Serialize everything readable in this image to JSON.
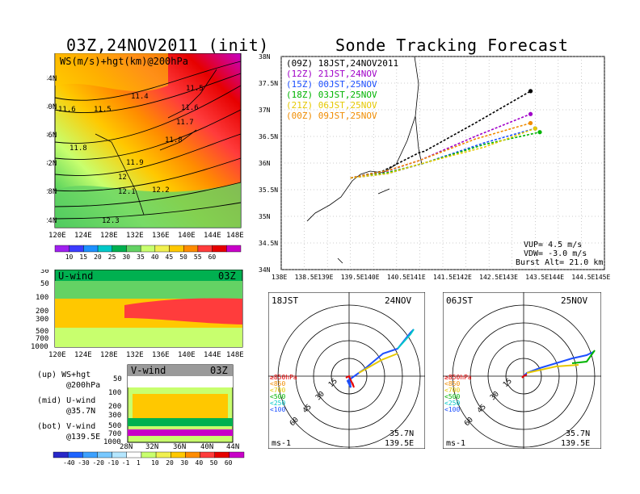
{
  "header": {
    "left_title": "03Z,24NOV2011 (init)",
    "right_title": "Sonde Tracking Forecast"
  },
  "map_panel": {
    "label": "WS(m/s)+hgt(km)@200hPa",
    "lat_labels": [
      "44N",
      "40N",
      "36N",
      "32N",
      "28N",
      "24N"
    ],
    "lon_labels": [
      "120E",
      "124E",
      "128E",
      "132E",
      "136E",
      "140E",
      "144E",
      "148E"
    ],
    "contour_labels": [
      "11.5",
      "11.4",
      "11.6",
      "11.5",
      "11.6",
      "11.7",
      "11.8",
      "11.8",
      "11.9",
      "12",
      "12.1",
      "12.2",
      "12.3"
    ],
    "colorbar_ticks": [
      "10",
      "15",
      "20",
      "25",
      "30",
      "35",
      "40",
      "45",
      "50",
      "55",
      "60"
    ],
    "colorbar_colors": [
      "#a020f0",
      "#3c3cff",
      "#1e90ff",
      "#00c8c8",
      "#00b050",
      "#64d264",
      "#c8ff6e",
      "#f0f050",
      "#ffc800",
      "#ff8c00",
      "#ff3c3c",
      "#e60000",
      "#c800c8"
    ]
  },
  "u_wind": {
    "label": "U-wind",
    "time": "03Z",
    "y_labels": [
      "30",
      "50",
      "100",
      "200",
      "300",
      "500",
      "700",
      "1000"
    ],
    "x_labels": [
      "120E",
      "124E",
      "128E",
      "132E",
      "136E",
      "140E",
      "144E",
      "148E"
    ]
  },
  "v_wind": {
    "label": "V-wind",
    "time": "03Z",
    "y_labels": [
      "50",
      "100",
      "200",
      "300",
      "500",
      "700",
      "1000"
    ],
    "x_labels": [
      "28N",
      "32N",
      "36N",
      "40N",
      "44N"
    ],
    "colorbar_ticks": [
      "-40",
      "-30",
      "-20",
      "-10",
      "-1",
      "1",
      "10",
      "20",
      "30",
      "40",
      "50",
      "60"
    ],
    "colorbar_colors": [
      "#2828c8",
      "#1e64ff",
      "#3ca0ff",
      "#78c8ff",
      "#b4e6ff",
      "#ffffff",
      "#c8ff6e",
      "#f0f050",
      "#ffc800",
      "#ff8c00",
      "#ff3c3c",
      "#e60000",
      "#c800c8"
    ]
  },
  "legend_text": [
    {
      "line1": "(up) WS+hgt",
      "line2": "@200hPa"
    },
    {
      "line1": "(mid) U-wind",
      "line2": "@35.7N"
    },
    {
      "line1": "(bot) V-wind",
      "line2": "@139.5E"
    }
  ],
  "chart_data": {
    "type": "line",
    "title": "Sonde Tracking Forecast",
    "xlabel": "",
    "ylabel": "",
    "xlim": [
      138,
      145
    ],
    "ylim": [
      34,
      38
    ],
    "x_ticks": [
      "138E",
      "138.5E",
      "139E",
      "139.5E",
      "140E",
      "140.5E",
      "141E",
      "141.5E",
      "142E",
      "142.5E",
      "143E",
      "143.5E",
      "144E",
      "144.5E",
      "145E"
    ],
    "y_ticks": [
      "34N",
      "34.5N",
      "35N",
      "35.5N",
      "36N",
      "36.5N",
      "37N",
      "37.5N",
      "38N"
    ],
    "grid": true,
    "legend_position": "top-left",
    "series": [
      {
        "name": "(09Z) 18JST,24NOV2011",
        "color": "#000000",
        "points": [
          [
            139.5,
            35.72
          ],
          [
            140.2,
            35.85
          ],
          [
            141.0,
            36.2
          ],
          [
            141.1,
            36.22
          ],
          [
            142.2,
            36.75
          ],
          [
            143.4,
            37.35
          ]
        ]
      },
      {
        "name": "(12Z) 21JST,24NOV",
        "color": "#a000c8",
        "points": [
          [
            139.5,
            35.72
          ],
          [
            140.3,
            35.85
          ],
          [
            141.0,
            36.05
          ],
          [
            142.2,
            36.5
          ],
          [
            143.4,
            36.92
          ]
        ]
      },
      {
        "name": "(15Z) 00JST,25NOV",
        "color": "#1e50ff",
        "points": [
          [
            139.5,
            35.72
          ],
          [
            140.3,
            35.8
          ],
          [
            141.1,
            36.0
          ],
          [
            142.4,
            36.38
          ],
          [
            143.5,
            36.65
          ]
        ]
      },
      {
        "name": "(18Z) 03JST,25NOV",
        "color": "#00b400",
        "points": [
          [
            139.5,
            35.72
          ],
          [
            140.3,
            35.82
          ],
          [
            141.1,
            36.0
          ],
          [
            142.4,
            36.35
          ],
          [
            143.6,
            36.58
          ]
        ]
      },
      {
        "name": "(21Z) 06JST,25NOV",
        "color": "#e6c800",
        "points": [
          [
            139.5,
            35.72
          ],
          [
            140.3,
            35.8
          ],
          [
            141.0,
            35.98
          ],
          [
            142.4,
            36.3
          ],
          [
            143.5,
            36.65
          ]
        ]
      },
      {
        "name": "(00Z) 09JST,25NOV",
        "color": "#f08c00",
        "points": [
          [
            139.5,
            35.72
          ],
          [
            140.3,
            35.86
          ],
          [
            141.0,
            36.05
          ],
          [
            142.2,
            36.45
          ],
          [
            143.4,
            36.75
          ]
        ]
      }
    ],
    "info": [
      "VUP= 4.5 m/s",
      "VDW= -3.0 m/s",
      "Burst Alt= 21.0 km"
    ]
  },
  "hodographs": [
    {
      "time": "18JST",
      "date": "24NOV",
      "ring_labels": [
        "15",
        "30",
        "45",
        "60"
      ],
      "unit": "ms-1",
      "loc1": "35.7N",
      "loc2": "139.5E",
      "legend": [
        {
          "text": "≥850hPa",
          "color": "#e60000"
        },
        {
          "text": "<850",
          "color": "#f08c00"
        },
        {
          "text": "<700",
          "color": "#e6c800"
        },
        {
          "text": "<500",
          "color": "#00b400"
        },
        {
          "text": "<250",
          "color": "#00c8c8"
        },
        {
          "text": "<100",
          "color": "#1e50ff"
        }
      ]
    },
    {
      "time": "06JST",
      "date": "25NOV",
      "ring_labels": [
        "15",
        "30",
        "45",
        "60"
      ],
      "unit": "ms-1",
      "loc1": "35.7N",
      "loc2": "139.5E",
      "legend": [
        {
          "text": "≥850hPa",
          "color": "#e60000"
        },
        {
          "text": "<850",
          "color": "#f08c00"
        },
        {
          "text": "<700",
          "color": "#e6c800"
        },
        {
          "text": "<500",
          "color": "#00b400"
        },
        {
          "text": "<250",
          "color": "#00c8c8"
        },
        {
          "text": "<100",
          "color": "#1e50ff"
        }
      ]
    }
  ]
}
